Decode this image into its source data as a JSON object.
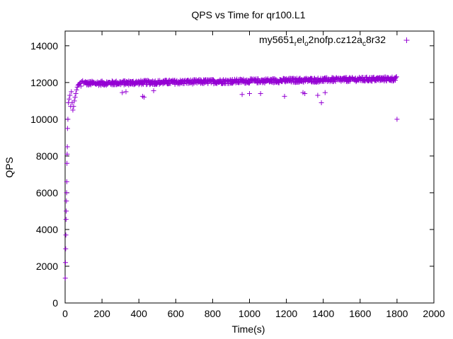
{
  "chart_data": {
    "type": "scatter",
    "title": "QPS vs Time for qr100.L1",
    "xlabel": "Time(s)",
    "ylabel": "QPS",
    "xlim": [
      0,
      2000
    ],
    "ylim": [
      0,
      14800
    ],
    "x_ticks": [
      0,
      200,
      400,
      600,
      800,
      1000,
      1200,
      1400,
      1600,
      1800,
      2000
    ],
    "y_ticks": [
      0,
      2000,
      4000,
      6000,
      8000,
      10000,
      12000,
      14000
    ],
    "grid": false,
    "legend_position": "top-right",
    "series": [
      {
        "name_parts": [
          {
            "text": "my5651",
            "sub": false
          },
          {
            "text": "r",
            "sub": true
          },
          {
            "text": "el",
            "sub": false
          },
          {
            "text": "o",
            "sub": true
          },
          {
            "text": "2nofp.cz12a",
            "sub": false
          },
          {
            "text": "c",
            "sub": true
          },
          {
            "text": "8r32",
            "sub": false
          }
        ],
        "color": "#9400d3",
        "marker": "+",
        "points": [
          [
            1,
            1350
          ],
          [
            2,
            2200
          ],
          [
            3,
            2950
          ],
          [
            4,
            3700
          ],
          [
            5,
            4550
          ],
          [
            6,
            5000
          ],
          [
            7,
            5550
          ],
          [
            8,
            6000
          ],
          [
            9,
            6600
          ],
          [
            10,
            7600
          ],
          [
            11,
            8100
          ],
          [
            12,
            8500
          ],
          [
            13,
            9500
          ],
          [
            15,
            10000
          ],
          [
            18,
            10900
          ],
          [
            22,
            11100
          ],
          [
            26,
            11300
          ],
          [
            30,
            10700
          ],
          [
            34,
            11500
          ],
          [
            38,
            10900
          ],
          [
            42,
            10500
          ],
          [
            46,
            10700
          ],
          [
            50,
            11000
          ],
          [
            54,
            11200
          ],
          [
            58,
            11400
          ],
          [
            62,
            11600
          ],
          [
            66,
            11750
          ],
          [
            70,
            11850
          ],
          [
            74,
            11900
          ],
          [
            78,
            11950
          ],
          [
            82,
            12000
          ],
          [
            86,
            11800
          ],
          [
            90,
            12050
          ],
          [
            95,
            12100
          ],
          [
            100,
            11950
          ],
          [
            105,
            12000
          ],
          [
            110,
            12050
          ]
        ],
        "steady_state": {
          "x_start": 110,
          "x_end": 1800,
          "step": 6,
          "y_start": 11950,
          "y_end": 12200,
          "spread": 120
        },
        "outliers": [
          [
            310,
            11450
          ],
          [
            330,
            11500
          ],
          [
            420,
            11250
          ],
          [
            428,
            11200
          ],
          [
            480,
            11550
          ],
          [
            960,
            11350
          ],
          [
            1000,
            11400
          ],
          [
            1060,
            11400
          ],
          [
            1190,
            11250
          ],
          [
            1290,
            11450
          ],
          [
            1300,
            11400
          ],
          [
            1370,
            11300
          ],
          [
            1390,
            10900
          ],
          [
            1410,
            11450
          ],
          [
            1800,
            10000
          ]
        ]
      }
    ]
  }
}
